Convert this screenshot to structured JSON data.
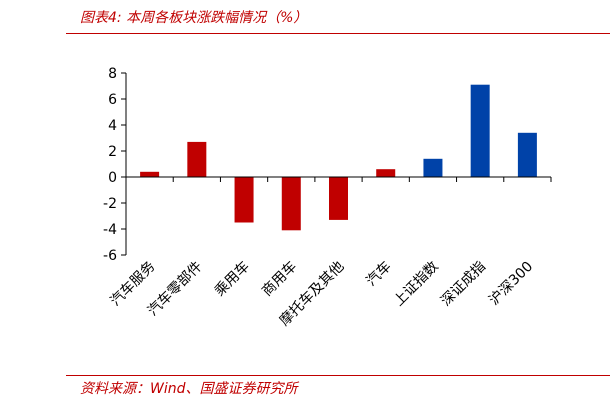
{
  "header": {
    "title": "图表4:  本周各板块涨跌幅情况（%）"
  },
  "footer": {
    "source": "资料来源：Wind、国盛证券研究所"
  },
  "colors": {
    "accent": "#c00000",
    "sector_bar": "#c00000",
    "index_bar": "#0042a8"
  },
  "chart_data": {
    "type": "bar",
    "categories": [
      "汽车服务",
      "汽车零部件",
      "乘用车",
      "商用车",
      "摩托车及其他",
      "汽车",
      "上证指数",
      "深证成指",
      "沪深300"
    ],
    "values": [
      0.4,
      2.7,
      -3.5,
      -4.1,
      -3.3,
      0.6,
      1.4,
      7.1,
      3.4
    ],
    "bar_colors": [
      "#c00000",
      "#c00000",
      "#c00000",
      "#c00000",
      "#c00000",
      "#c00000",
      "#0042a8",
      "#0042a8",
      "#0042a8"
    ],
    "yticks": [
      "8",
      "6",
      "4",
      "2",
      "0",
      "-2",
      "-4",
      "-6"
    ],
    "ylim": [
      -6,
      8
    ],
    "title": "",
    "xlabel": "",
    "ylabel": "",
    "grid": false,
    "legend": "none"
  }
}
